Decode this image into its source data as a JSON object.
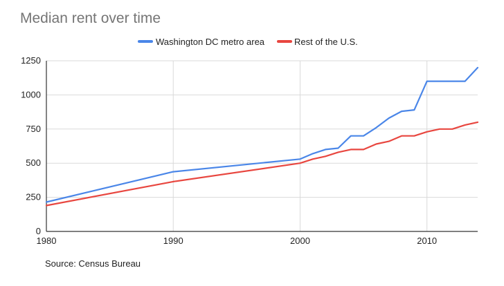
{
  "chart_data": {
    "type": "line",
    "title": "Median rent over time",
    "source": "Source: Census Bureau",
    "xlabel": "",
    "ylabel": "",
    "xlim": [
      1980,
      2014
    ],
    "ylim": [
      0,
      1250
    ],
    "x_ticks": [
      1980,
      1990,
      2000,
      2010
    ],
    "y_ticks": [
      0,
      250,
      500,
      750,
      1000,
      1250
    ],
    "grid": true,
    "legend_position": "top",
    "series": [
      {
        "name": "Washington DC metro area",
        "color": "#4a86e8",
        "points": [
          [
            1980,
            215
          ],
          [
            1990,
            437
          ],
          [
            2000,
            530
          ],
          [
            2001,
            570
          ],
          [
            2002,
            600
          ],
          [
            2003,
            610
          ],
          [
            2004,
            700
          ],
          [
            2005,
            700
          ],
          [
            2006,
            760
          ],
          [
            2007,
            830
          ],
          [
            2008,
            880
          ],
          [
            2009,
            890
          ],
          [
            2010,
            1100
          ],
          [
            2011,
            1100
          ],
          [
            2012,
            1100
          ],
          [
            2013,
            1100
          ],
          [
            2014,
            1200
          ]
        ]
      },
      {
        "name": "Rest of the U.S.",
        "color": "#e8463f",
        "points": [
          [
            1980,
            190
          ],
          [
            1990,
            365
          ],
          [
            2000,
            500
          ],
          [
            2001,
            530
          ],
          [
            2002,
            550
          ],
          [
            2003,
            580
          ],
          [
            2004,
            600
          ],
          [
            2005,
            600
          ],
          [
            2006,
            640
          ],
          [
            2007,
            660
          ],
          [
            2008,
            700
          ],
          [
            2009,
            700
          ],
          [
            2010,
            730
          ],
          [
            2011,
            750
          ],
          [
            2012,
            750
          ],
          [
            2013,
            780
          ],
          [
            2014,
            800
          ]
        ]
      }
    ]
  }
}
